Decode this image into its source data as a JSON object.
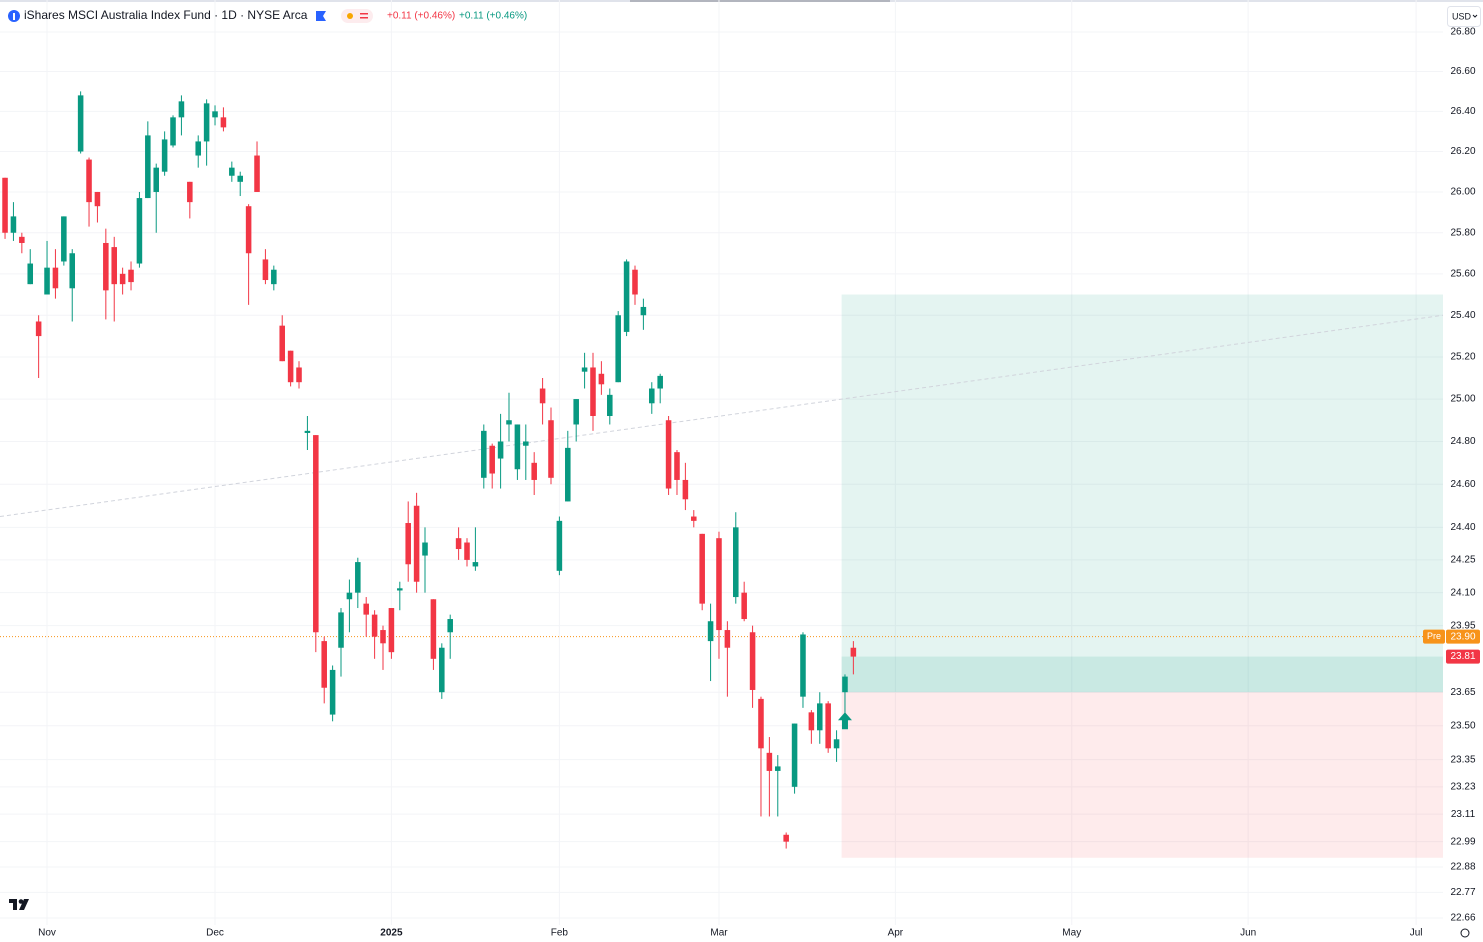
{
  "header": {
    "title": "iShares MSCI Australia Index Fund · 1D · NYSE Arca",
    "change_bid": "+0.11 (+0.46%)",
    "change_ask": "+0.11 (+0.46%)",
    "currency": "USD"
  },
  "chart_data": {
    "type": "candlestick",
    "up_color": "#089981",
    "down_color": "#f23645",
    "open": [
      26.07,
      25.8,
      25.78,
      25.55,
      25.37,
      25.5,
      25.63,
      25.66,
      25.53,
      26.2,
      26.16,
      26.0,
      25.75,
      25.73,
      25.6,
      25.62,
      25.65,
      25.97,
      26.0,
      26.1,
      26.23,
      26.37,
      26.05,
      26.18,
      26.25,
      26.37,
      26.37,
      26.08,
      26.05,
      25.93,
      26.18,
      25.67,
      25.55,
      25.35,
      25.23,
      25.15,
      24.84,
      24.83,
      23.88,
      23.55,
      23.85,
      24.07,
      24.1,
      24.05,
      24.0,
      23.93,
      24.03,
      24.11,
      24.42,
      24.5,
      24.27,
      24.07,
      23.65,
      23.92,
      24.35,
      24.33,
      24.22,
      24.63,
      24.78,
      24.72,
      24.88,
      24.67,
      24.78,
      24.7,
      25.05,
      24.9,
      24.2,
      24.52,
      24.88,
      25.13,
      25.15,
      25.12,
      24.92,
      25.08,
      25.32,
      25.62,
      25.4,
      24.98,
      25.05,
      24.9,
      24.75,
      24.62,
      24.45,
      24.37,
      23.88,
      24.35,
      23.93,
      24.08,
      24.1,
      23.92,
      23.62,
      23.38,
      23.3,
      23.02,
      23.23,
      23.63,
      23.56,
      23.48,
      23.6,
      23.4,
      23.65,
      23.85
    ],
    "high": [
      26.07,
      25.95,
      25.8,
      25.72,
      25.4,
      25.76,
      25.72,
      25.88,
      25.72,
      26.5,
      26.17,
      26.0,
      25.82,
      25.78,
      25.63,
      25.66,
      26.0,
      26.35,
      26.14,
      26.3,
      26.38,
      26.48,
      26.05,
      26.28,
      26.46,
      26.43,
      26.42,
      26.15,
      26.1,
      25.94,
      26.25,
      25.72,
      25.64,
      25.4,
      25.23,
      25.18,
      24.92,
      24.83,
      23.9,
      23.77,
      24.03,
      24.16,
      24.26,
      24.08,
      24.02,
      23.95,
      24.03,
      24.15,
      24.52,
      24.56,
      24.4,
      24.07,
      23.87,
      24.0,
      24.4,
      24.35,
      24.4,
      24.88,
      24.79,
      24.93,
      25.03,
      24.88,
      24.88,
      24.75,
      25.1,
      24.96,
      24.45,
      24.85,
      25.0,
      25.22,
      25.22,
      25.18,
      25.05,
      25.42,
      25.67,
      25.64,
      25.48,
      25.08,
      25.12,
      24.92,
      24.76,
      24.7,
      24.48,
      24.37,
      24.05,
      24.38,
      23.97,
      24.47,
      24.15,
      23.95,
      23.63,
      23.45,
      23.37,
      23.03,
      23.51,
      23.92,
      23.57,
      23.65,
      23.61,
      23.48,
      23.73,
      23.88
    ],
    "low": [
      25.77,
      25.76,
      25.7,
      25.55,
      25.1,
      25.5,
      25.48,
      25.64,
      25.37,
      26.19,
      25.83,
      25.85,
      25.38,
      25.37,
      25.5,
      25.52,
      25.63,
      25.97,
      25.8,
      26.08,
      26.22,
      26.28,
      25.87,
      26.12,
      26.13,
      26.33,
      26.3,
      26.05,
      25.98,
      25.45,
      26.0,
      25.55,
      25.52,
      25.18,
      25.06,
      25.05,
      24.76,
      23.83,
      23.6,
      23.52,
      23.72,
      23.92,
      24.03,
      23.9,
      23.8,
      23.75,
      23.8,
      24.02,
      24.15,
      24.1,
      24.1,
      23.75,
      23.62,
      23.8,
      24.25,
      24.22,
      24.2,
      24.58,
      24.58,
      24.58,
      24.8,
      24.62,
      24.62,
      24.55,
      24.88,
      24.6,
      24.18,
      24.52,
      24.8,
      25.05,
      24.85,
      25.02,
      24.88,
      25.08,
      25.3,
      25.45,
      25.33,
      24.93,
      24.98,
      24.55,
      24.55,
      24.48,
      24.4,
      24.02,
      23.7,
      23.8,
      23.63,
      24.05,
      23.97,
      23.58,
      23.1,
      23.1,
      23.1,
      22.96,
      23.2,
      23.58,
      23.42,
      23.42,
      23.38,
      23.34,
      23.55,
      23.73
    ],
    "close": [
      25.8,
      25.88,
      25.75,
      25.65,
      25.3,
      25.63,
      25.53,
      25.88,
      25.7,
      26.48,
      25.95,
      25.93,
      25.52,
      25.55,
      25.55,
      25.56,
      25.97,
      26.28,
      26.12,
      26.26,
      26.37,
      26.45,
      25.95,
      26.25,
      26.44,
      26.4,
      26.32,
      26.12,
      26.08,
      25.7,
      26.0,
      25.57,
      25.62,
      25.18,
      25.08,
      25.08,
      24.85,
      23.92,
      23.67,
      23.75,
      24.01,
      24.1,
      24.24,
      24.0,
      23.9,
      23.87,
      23.83,
      24.12,
      24.23,
      24.15,
      24.33,
      23.8,
      23.85,
      23.98,
      24.3,
      24.25,
      24.24,
      24.85,
      24.65,
      24.8,
      24.9,
      24.88,
      24.8,
      24.62,
      24.98,
      24.63,
      24.43,
      24.77,
      25.0,
      25.15,
      24.92,
      25.07,
      25.02,
      25.4,
      25.66,
      25.5,
      25.44,
      25.05,
      25.11,
      24.58,
      24.62,
      24.53,
      24.43,
      24.05,
      23.97,
      23.93,
      23.85,
      24.4,
      23.98,
      23.66,
      23.4,
      23.3,
      23.32,
      22.99,
      23.51,
      23.91,
      23.48,
      23.6,
      23.4,
      23.44,
      23.72,
      23.81
    ],
    "log_scale": true,
    "grid": true,
    "ylim": [
      22.63,
      26.82
    ],
    "yticks": [
      {
        "value": 26.8,
        "label": "26.80"
      },
      {
        "value": 26.6,
        "label": "26.60"
      },
      {
        "value": 26.4,
        "label": "26.40"
      },
      {
        "value": 26.2,
        "label": "26.20"
      },
      {
        "value": 26.0,
        "label": "26.00"
      },
      {
        "value": 25.8,
        "label": "25.80"
      },
      {
        "value": 25.6,
        "label": "25.60"
      },
      {
        "value": 25.4,
        "label": "25.40"
      },
      {
        "value": 25.2,
        "label": "25.20"
      },
      {
        "value": 25.0,
        "label": "25.00"
      },
      {
        "value": 24.8,
        "label": "24.80"
      },
      {
        "value": 24.6,
        "label": "24.60"
      },
      {
        "value": 24.4,
        "label": "24.40"
      },
      24.25,
      {
        "value": 24.1,
        "label": "24.10"
      },
      23.95,
      23.65,
      {
        "value": 23.5,
        "label": "23.50"
      },
      23.35,
      23.23,
      23.11,
      22.99,
      22.88,
      22.77,
      22.66
    ],
    "xlim": [
      -0.6,
      171.2
    ],
    "xticks": [
      {
        "value": 5,
        "label": "Nov"
      },
      {
        "value": 25,
        "label": "Dec"
      },
      {
        "value": 46,
        "label": "2025"
      },
      {
        "value": 66,
        "label": "Feb"
      },
      {
        "value": 85,
        "label": "Mar"
      },
      {
        "value": 106,
        "label": "Apr"
      },
      {
        "value": 127,
        "label": "May"
      },
      {
        "value": 148,
        "label": "Jun"
      },
      {
        "value": 168,
        "label": "Jul"
      }
    ],
    "trend_line": {
      "x": [
        -0.6,
        171.2
      ],
      "y": [
        24.45,
        25.4
      ]
    },
    "position": {
      "x": [
        99.6,
        171.2
      ],
      "target": 25.5,
      "entry": 23.65,
      "stop": 22.92
    },
    "buy_signal": {
      "x": 100,
      "y": 23.52
    },
    "pre_market": {
      "tag": "Pre",
      "price": {
        "value": 23.9,
        "label": "23.90"
      },
      "color": "#f7931a"
    },
    "last_price": 23.81
  }
}
